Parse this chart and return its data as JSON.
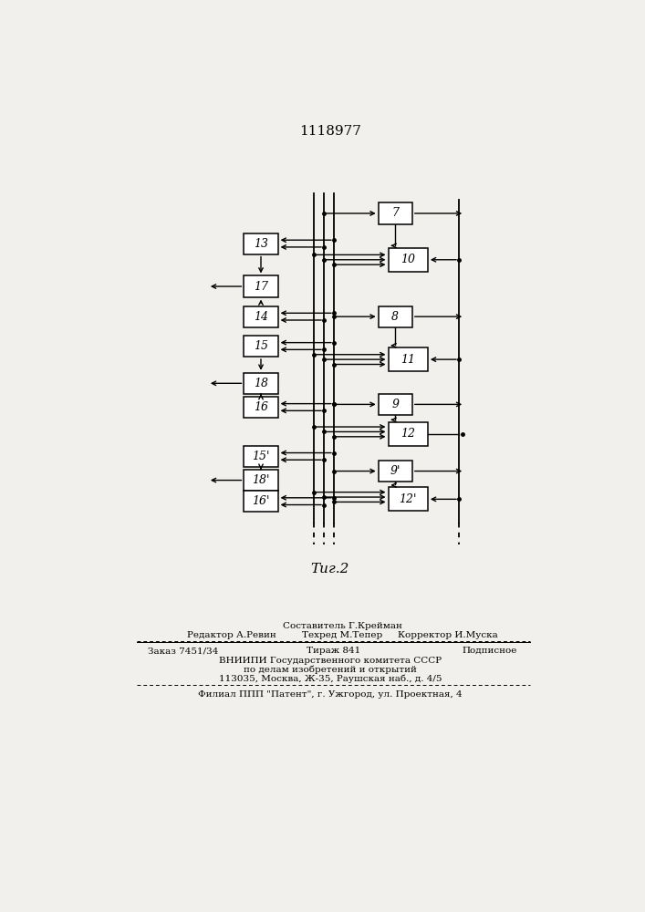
{
  "title": "1118977",
  "fig_label": "Τиг.2",
  "bg": "#f2f0ec",
  "box_fc": "#ffffff",
  "box_ec": "#000000",
  "lc": "#000000",
  "f_editor": "Редактор А.Ревин",
  "f_sostavitel": "Составитель Г.Крейман",
  "f_tehred": "Техред М.Тепер",
  "f_korrektor": "Корректор И.Муска",
  "f_zakaz": "Заказ 7451/34",
  "f_tirazh": "Тираж 841",
  "f_podpisnoe": "Подписное",
  "f_vniip": "ВНИИПИ Государственного комитета СССР",
  "f_po_delam": "по делам изобретений и открытий",
  "f_address": "113035, Москва, Ж-35, Раушская наб., д. 4/5",
  "f_filial": "Филиал ППП \"Патент\", г. Ужгород, ул. Проектная, 4"
}
